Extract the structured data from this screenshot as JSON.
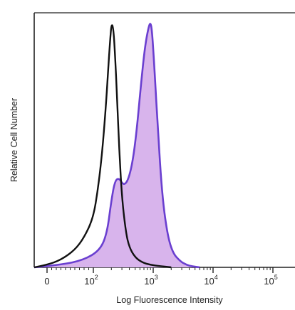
{
  "chart_data": {
    "type": "area",
    "title": "",
    "xlabel": "Log Fluorescence Intensity",
    "ylabel": "Relative Cell Number",
    "x_scale": "biexponential",
    "xlim": [
      -30,
      200000
    ],
    "ylim": [
      0,
      1
    ],
    "grid": false,
    "legend": "none",
    "x_ticks": [
      {
        "value": 0,
        "label": "0"
      },
      {
        "value": 100,
        "label": "10",
        "exp": "2"
      },
      {
        "value": 1000,
        "label": "10",
        "exp": "3"
      },
      {
        "value": 10000,
        "label": "10",
        "exp": "4"
      },
      {
        "value": 100000,
        "label": "10",
        "exp": "5"
      }
    ],
    "series": [
      {
        "style": "outline",
        "color": "#111111",
        "x": [
          -30,
          0,
          30,
          60,
          80,
          100,
          120,
          140,
          160,
          175,
          190,
          200,
          215,
          230,
          250,
          270,
          300,
          350,
          400,
          500,
          650,
          900,
          1300,
          2000
        ],
        "y": [
          0.0,
          0.01,
          0.03,
          0.07,
          0.12,
          0.2,
          0.32,
          0.46,
          0.63,
          0.78,
          0.91,
          0.98,
          0.97,
          0.86,
          0.68,
          0.48,
          0.28,
          0.14,
          0.08,
          0.04,
          0.02,
          0.01,
          0.005,
          0.0
        ]
      },
      {
        "style": "filled",
        "color": "#6a3fd0",
        "fill": "#d8b4ec",
        "x": [
          -30,
          30,
          80,
          130,
          170,
          200,
          230,
          270,
          320,
          380,
          450,
          530,
          620,
          720,
          820,
          900,
          960,
          1050,
          1200,
          1400,
          1700,
          2100,
          2800,
          3600,
          4500,
          6000
        ],
        "y": [
          0.0,
          0.01,
          0.03,
          0.07,
          0.14,
          0.27,
          0.35,
          0.36,
          0.33,
          0.35,
          0.42,
          0.55,
          0.73,
          0.88,
          0.96,
          0.99,
          0.95,
          0.8,
          0.55,
          0.3,
          0.14,
          0.06,
          0.025,
          0.01,
          0.004,
          0.0
        ]
      }
    ]
  }
}
